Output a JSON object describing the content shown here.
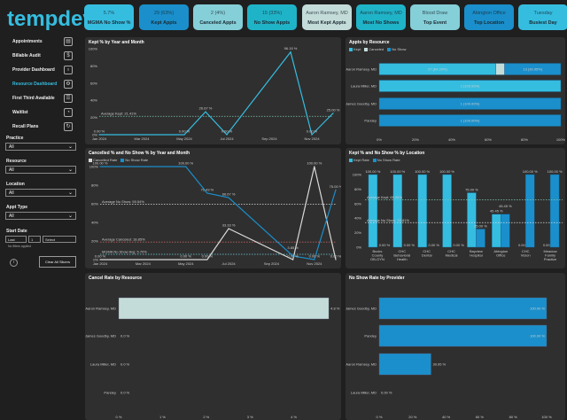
{
  "brand": "tempdev",
  "kpis": [
    {
      "value": "5.7%",
      "label": "MGMA No Show %",
      "color": "#35bde0"
    },
    {
      "value": "29 (63%)",
      "label": "Kept Appts",
      "color": "#1a8fcb"
    },
    {
      "value": "2 (4%)",
      "label": "Canceled Appts",
      "color": "#85cfd8"
    },
    {
      "value": "15 (33%)",
      "label": "No Show Appts",
      "color": "#1fb3c8"
    },
    {
      "value": "Aaron Ramsey, MD",
      "label": "Most Kept Appts",
      "color": "#c4dcd9"
    },
    {
      "value": "Aaron Ramsey, MD",
      "label": "Most No Shows",
      "color": "#1fb3c8"
    },
    {
      "value": "Blood Draw",
      "label": "Top Event",
      "color": "#85cfd8"
    },
    {
      "value": "Abington Office",
      "label": "Top Location",
      "color": "#1a8fcb"
    },
    {
      "value": "Tuesday",
      "label": "Busiest Day",
      "color": "#35bde0"
    }
  ],
  "nav": [
    {
      "label": "Appointments",
      "icon": "calendar-icon",
      "active": false
    },
    {
      "label": "Billable Audit",
      "icon": "audit-icon",
      "active": false
    },
    {
      "label": "Provider Dashboard",
      "icon": "stethoscope-icon",
      "active": false
    },
    {
      "label": "Resource Dashboard",
      "icon": "resource-icon",
      "active": true
    },
    {
      "label": "First Third Available",
      "icon": "clipboard-icon",
      "active": false
    },
    {
      "label": "Waitlist",
      "icon": "waitlist-icon",
      "active": false
    },
    {
      "label": "Recall Plans",
      "icon": "recall-icon",
      "active": false
    }
  ],
  "filters": [
    {
      "label": "Practice",
      "value": "All"
    },
    {
      "label": "Resource",
      "value": "All"
    },
    {
      "label": "Location",
      "value": "All"
    },
    {
      "label": "Appt Type",
      "value": "All"
    }
  ],
  "start_date": {
    "label": "Start Date",
    "mode": "Last",
    "count": "1",
    "unit": "Select",
    "note": "No filters applied"
  },
  "clear_button": "Clear All Slicers",
  "colors": {
    "kept": "#35bde0",
    "canceled": "#c4dcd9",
    "noshow": "#1a8fcb",
    "panel": "#2f2f2f"
  },
  "chart_data": [
    {
      "type": "line",
      "title": "Kept % by Year and Month",
      "x": [
        "Jan 2024",
        "May 2024",
        "Jun 2024",
        "Jul 2024",
        "Oct 2024",
        "Nov 2024",
        "Dec 2024"
      ],
      "series": [
        {
          "values": [
            0,
            0,
            26.67,
            0,
            96.15,
            0,
            25
          ],
          "labels": [
            "0.00 %",
            "0.00 %",
            "26.67 %",
            "0.00 %",
            "96.15 %",
            "0.00 %",
            "25.00 %"
          ],
          "color": "#35bde0"
        }
      ],
      "xticks": [
        "Jan 2024",
        "Mar 2024",
        "May 2024",
        "Jul 2024",
        "Sep 2024",
        "Nov 2024"
      ],
      "yticks": [
        "0%",
        "20%",
        "40%",
        "60%",
        "80%",
        "100%"
      ],
      "ylim": [
        0,
        100
      ],
      "reference_lines": [
        {
          "label": "Average Kept: 21.41%",
          "value": 21.41,
          "color": "#7fc8b0"
        }
      ]
    },
    {
      "type": "bar",
      "orientation": "horizontal",
      "stacked": true,
      "title": "Appts by Resource",
      "categories": [
        "Aaron Ramsey, MD",
        "Laura Miller, MD",
        "James Goodby, MD",
        "Pandey"
      ],
      "series": [
        {
          "name": "Kept",
          "color": "#35bde0",
          "values": [
            64.29,
            100,
            0,
            0
          ],
          "labels": [
            "27 (64.29%)",
            "2 (100.00%)",
            "",
            ""
          ]
        },
        {
          "name": "Canceled",
          "color": "#c4dcd9",
          "values": [
            4.76,
            0,
            0,
            0
          ],
          "labels": [
            "",
            "",
            "",
            ""
          ]
        },
        {
          "name": "No Show",
          "color": "#1a8fcb",
          "values": [
            30.95,
            0,
            100,
            100
          ],
          "labels": [
            "13 (30.95%)",
            "",
            "1 (100.00%)",
            "1 (100.00%)"
          ]
        }
      ],
      "xticks": [
        "0%",
        "20%",
        "40%",
        "60%",
        "80%",
        "100%"
      ],
      "xlim": [
        0,
        100
      ]
    },
    {
      "type": "line",
      "title": "Cancelled % and No Show % by Year and Month",
      "x": [
        "Jan 2024",
        "May 2024",
        "Jun 2024",
        "Jul 2024",
        "Oct 2024",
        "Nov 2024",
        "Dec 2024"
      ],
      "series": [
        {
          "name": "Cancelled Rate",
          "color": "#d9d9d9",
          "values": [
            0,
            0,
            0,
            33.33,
            0,
            100,
            0
          ],
          "labels": [
            "0.00 %",
            "0.00 %",
            "0.00 %",
            "33.33 %",
            "0.00 %",
            "100.00 %",
            "0.00 %"
          ]
        },
        {
          "name": "No Show Rate",
          "color": "#1a8fcb",
          "values": [
            100,
            100,
            71.43,
            66.67,
            3.85,
            0,
            75
          ],
          "labels": [
            "100.00 %",
            "100.00 %",
            "71.43 %",
            "66.67 %",
            "3.85 %",
            "0.00 %",
            "75.00 %"
          ]
        }
      ],
      "xticks": [
        "Jan 2024",
        "Mar 2024",
        "May 2024",
        "Jul 2024",
        "Sep 2024",
        "Nov 2024"
      ],
      "yticks": [
        "0%",
        "20%",
        "40%",
        "60%",
        "80%",
        "100%"
      ],
      "ylim": [
        0,
        100
      ],
      "reference_lines": [
        {
          "label": "Average No Show: 59.54%",
          "value": 59.54,
          "color": "#dddddd"
        },
        {
          "label": "Average Canceled: 18.85%",
          "value": 18.85,
          "color": "#c06060"
        },
        {
          "label": "MGMA No Show Avg: 5.70%",
          "value": 5.7,
          "color": "#6fd0e0"
        }
      ]
    },
    {
      "type": "bar",
      "orientation": "vertical",
      "title": "Kept % and No Show % by Location",
      "categories": [
        "Bucks County OB-GYN",
        "CHC Behavioral Health",
        "CHC Dental",
        "CHC Medical",
        "Bayview Hospital",
        "Abington Office",
        "CHC Vision",
        "Meadow Family Practice"
      ],
      "series": [
        {
          "name": "Kept Rate",
          "color": "#35bde0",
          "values": [
            100,
            100,
            100,
            100,
            75,
            45.45,
            0,
            0
          ]
        },
        {
          "name": "No Show Rate",
          "color": "#1a8fcb",
          "values": [
            0,
            0,
            0,
            0,
            25,
            45.45,
            100,
            100
          ]
        }
      ],
      "yticks": [
        "0%",
        "20%",
        "40%",
        "60%",
        "80%",
        "100%"
      ],
      "ylim": [
        0,
        100
      ],
      "reference_lines": [
        {
          "label": "Average Kept: 65.06%",
          "value": 65.06,
          "color": "#7fc8b0"
        },
        {
          "label": "Average No Show: 33.81%",
          "value": 33.81,
          "color": "#dddddd"
        }
      ]
    },
    {
      "type": "bar",
      "orientation": "horizontal",
      "title": "Cancel Rate by Resource",
      "categories": [
        "Aaron Ramsey, MD",
        "James Goodby, MD",
        "Laura Miller, MD",
        "Pandey"
      ],
      "values": [
        4.8,
        0,
        0,
        0
      ],
      "labels": [
        "4.8 %",
        "0.0 %",
        "0.0 %",
        "0.0 %"
      ],
      "color": "#c4dcd9",
      "xticks": [
        "0 %",
        "1 %",
        "2 %",
        "3 %",
        "4 %"
      ],
      "xlim": [
        0,
        5
      ]
    },
    {
      "type": "bar",
      "orientation": "horizontal",
      "title": "No Show Rate by Provider",
      "categories": [
        "James Goodby, MD",
        "Pandey",
        "Aaron Ramsey, MD",
        "Laura Miller, MD"
      ],
      "values": [
        100,
        100,
        30.95,
        0
      ],
      "labels": [
        "100.00 %",
        "100.00 %",
        "30.95 %",
        "0.00 %"
      ],
      "color": "#1a8fcb",
      "xticks": [
        "0 %",
        "20 %",
        "40 %",
        "60 %",
        "80 %",
        "100 %"
      ],
      "xlim": [
        0,
        100
      ]
    }
  ]
}
